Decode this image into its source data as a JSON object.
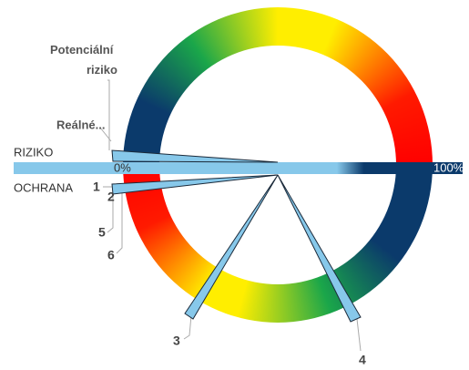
{
  "labels": {
    "potential": "Potenciální riziko",
    "real": "Reálné...",
    "risk": "RIZIKO",
    "protection": "OCHRANA",
    "zero": "0%",
    "hundred": "100%"
  },
  "pointers": [
    "1",
    "2",
    "3",
    "4",
    "5",
    "6"
  ]
}
